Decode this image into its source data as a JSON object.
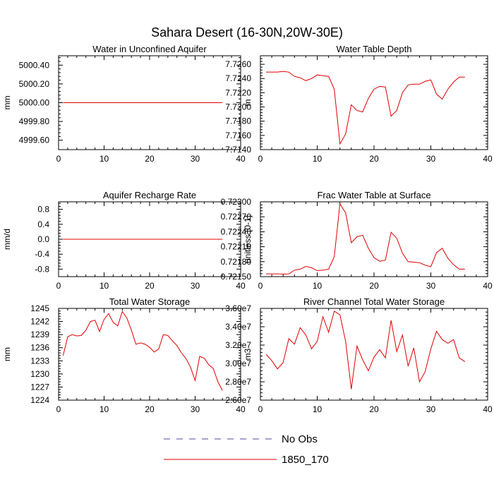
{
  "figure_title": "Sahara Desert (16-30N,20W-30E)",
  "legend": {
    "items": [
      {
        "label": "No Obs",
        "color": "#4a4aa0",
        "style": "dashed"
      },
      {
        "label": "1850_170",
        "color": "#e00000",
        "style": "solid"
      }
    ]
  },
  "chart_data": [
    {
      "type": "line",
      "title": "Water in Unconfined Aquifer",
      "ylabel": "mm",
      "xlim": [
        0,
        40
      ],
      "ylim": [
        4999.5,
        5000.5
      ],
      "xticks": [
        0,
        10,
        20,
        30,
        40
      ],
      "yticks": [
        4999.6,
        4999.8,
        5000.0,
        5000.2,
        5000.4
      ],
      "yticklabels": [
        "4999.60",
        "4999.80",
        "5000.00",
        "5000.20",
        "5000.40"
      ],
      "series": [
        {
          "color": "#e00000",
          "x": [
            1,
            2,
            3,
            4,
            5,
            6,
            7,
            8,
            9,
            10,
            11,
            12,
            13,
            14,
            15,
            16,
            17,
            18,
            19,
            20,
            21,
            22,
            23,
            24,
            25,
            26,
            27,
            28,
            29,
            30,
            31,
            32,
            33,
            34,
            35,
            36
          ],
          "y": [
            5000,
            5000,
            5000,
            5000,
            5000,
            5000,
            5000,
            5000,
            5000,
            5000,
            5000,
            5000,
            5000,
            5000,
            5000,
            5000,
            5000,
            5000,
            5000,
            5000,
            5000,
            5000,
            5000,
            5000,
            5000,
            5000,
            5000,
            5000,
            5000,
            5000,
            5000,
            5000,
            5000,
            5000,
            5000,
            5000
          ]
        }
      ]
    },
    {
      "type": "line",
      "title": "Water Table Depth",
      "ylabel": "m",
      "xlim": [
        0,
        40
      ],
      "ylim": [
        7.714,
        7.7272
      ],
      "xticks": [
        0,
        10,
        20,
        30,
        40
      ],
      "yticks": [
        7.714,
        7.716,
        7.718,
        7.72,
        7.722,
        7.724,
        7.726
      ],
      "yticklabels": [
        "7.7140",
        "7.7160",
        "7.7180",
        "7.7200",
        "7.7220",
        "7.7240",
        "7.7260"
      ],
      "series": [
        {
          "color": "#e00000",
          "x": [
            1,
            2,
            3,
            4,
            5,
            6,
            7,
            8,
            9,
            10,
            11,
            12,
            13,
            14,
            15,
            16,
            17,
            18,
            19,
            20,
            21,
            22,
            23,
            24,
            25,
            26,
            27,
            28,
            29,
            30,
            31,
            32,
            33,
            34,
            35,
            36
          ],
          "y": [
            7.7249,
            7.7249,
            7.7249,
            7.725,
            7.7249,
            7.7243,
            7.7241,
            7.7237,
            7.724,
            7.7245,
            7.7244,
            7.7243,
            7.7225,
            7.7148,
            7.7162,
            7.7203,
            7.7195,
            7.7193,
            7.7212,
            7.7225,
            7.7229,
            7.7228,
            7.7187,
            7.7195,
            7.722,
            7.7231,
            7.7232,
            7.7232,
            7.7236,
            7.7238,
            7.7218,
            7.7211,
            7.7225,
            7.7235,
            7.7242,
            7.7242
          ]
        }
      ]
    },
    {
      "type": "line",
      "title": "Aquifer Recharge Rate",
      "ylabel": "mm/d",
      "xlim": [
        0,
        40
      ],
      "ylim": [
        -1.0,
        1.0
      ],
      "xticks": [
        0,
        10,
        20,
        30,
        40
      ],
      "yticks": [
        -0.8,
        -0.4,
        0.0,
        0.4,
        0.8
      ],
      "yticklabels": [
        "-0.8",
        "-0.4",
        "0.0",
        "0.4",
        "0.8"
      ],
      "series": [
        {
          "color": "#e00000",
          "x": [
            1,
            2,
            3,
            4,
            5,
            6,
            7,
            8,
            9,
            10,
            11,
            12,
            13,
            14,
            15,
            16,
            17,
            18,
            19,
            20,
            21,
            22,
            23,
            24,
            25,
            26,
            27,
            28,
            29,
            30,
            31,
            32,
            33,
            34,
            35,
            36
          ],
          "y": [
            0,
            0,
            0,
            0,
            0,
            0,
            0,
            0,
            0,
            0,
            0,
            0,
            0,
            0,
            0,
            0,
            0,
            0,
            0,
            0,
            0,
            0,
            0,
            0,
            0,
            0,
            0,
            0,
            0,
            0,
            0,
            0,
            0,
            0,
            0,
            0
          ]
        }
      ]
    },
    {
      "type": "line",
      "title": "Frac Water Table at Surface",
      "ylabel": "unitless [0-1]",
      "xlim": [
        0,
        40
      ],
      "ylim": [
        0.7215,
        0.723
      ],
      "xticks": [
        0,
        10,
        20,
        30,
        40
      ],
      "yticks": [
        0.7215,
        0.7218,
        0.7221,
        0.7224,
        0.7227,
        0.723
      ],
      "yticklabels": [
        "0.72150",
        "0.72180",
        "0.72210",
        "0.72240",
        "0.72270",
        "0.72300"
      ],
      "series": [
        {
          "color": "#e00000",
          "x": [
            1,
            2,
            3,
            4,
            5,
            6,
            7,
            8,
            9,
            10,
            11,
            12,
            13,
            14,
            15,
            16,
            17,
            18,
            19,
            20,
            21,
            22,
            23,
            24,
            25,
            26,
            27,
            28,
            29,
            30,
            31,
            32,
            33,
            34,
            35,
            36
          ],
          "y": [
            0.721555,
            0.721555,
            0.721555,
            0.721552,
            0.721555,
            0.72163,
            0.72165,
            0.721705,
            0.72168,
            0.72162,
            0.72163,
            0.72165,
            0.7219,
            0.72296,
            0.72278,
            0.72218,
            0.7223,
            0.72233,
            0.72207,
            0.72188,
            0.72181,
            0.72183,
            0.72239,
            0.72227,
            0.72197,
            0.7218,
            0.72179,
            0.72178,
            0.72173,
            0.7217,
            0.72198,
            0.72207,
            0.72187,
            0.72174,
            0.72165,
            0.72165
          ]
        }
      ]
    },
    {
      "type": "line",
      "title": "Total Water Storage",
      "ylabel": "mm",
      "xlim": [
        0,
        40
      ],
      "ylim": [
        1224,
        1245
      ],
      "xticks": [
        0,
        10,
        20,
        30,
        40
      ],
      "yticks": [
        1224,
        1227,
        1230,
        1233,
        1236,
        1239,
        1242,
        1245
      ],
      "yticklabels": [
        "1224",
        "1227",
        "1230",
        "1233",
        "1236",
        "1239",
        "1242",
        "1245"
      ],
      "series": [
        {
          "color": "#e00000",
          "x": [
            1,
            2,
            3,
            4,
            5,
            6,
            7,
            8,
            9,
            10,
            11,
            12,
            13,
            14,
            15,
            16,
            17,
            18,
            19,
            20,
            21,
            22,
            23,
            24,
            25,
            26,
            27,
            28,
            29,
            30,
            31,
            32,
            33,
            34,
            35,
            36
          ],
          "y": [
            1234.2,
            1238.5,
            1239,
            1238.7,
            1238.8,
            1240,
            1242,
            1242.3,
            1239.7,
            1242.5,
            1243.8,
            1241.8,
            1241,
            1244.3,
            1242.8,
            1240,
            1236.8,
            1237.1,
            1236.8,
            1236.1,
            1235,
            1235.7,
            1239,
            1238.8,
            1237.6,
            1236.5,
            1234.8,
            1233.5,
            1231.5,
            1228.5,
            1234,
            1233.6,
            1232.1,
            1231.2,
            1228.2,
            1226.2
          ]
        }
      ]
    },
    {
      "type": "line",
      "title": "River Channel Total Water Storage",
      "ylabel": "m3",
      "xlim": [
        0,
        40
      ],
      "ylim": [
        26000000,
        36000000
      ],
      "xticks": [
        0,
        10,
        20,
        30,
        40
      ],
      "yticks": [
        26000000,
        28000000,
        30000000,
        32000000,
        34000000,
        36000000
      ],
      "yticklabels": [
        "2.60e7",
        "2.80e7",
        "3.00e7",
        "3.20e7",
        "3.40e7",
        "3.60e7"
      ],
      "series": [
        {
          "color": "#e00000",
          "x": [
            1,
            2,
            3,
            4,
            5,
            6,
            7,
            8,
            9,
            10,
            11,
            12,
            13,
            14,
            15,
            16,
            17,
            18,
            19,
            20,
            21,
            22,
            23,
            24,
            25,
            26,
            27,
            28,
            29,
            30,
            31,
            32,
            33,
            34,
            35,
            36
          ],
          "y": [
            31000000,
            30300000,
            29400000,
            30100000,
            32700000,
            32100000,
            33900000,
            33100000,
            31600000,
            32400000,
            35100000,
            33400000,
            35700000,
            35300000,
            32400000,
            27200000,
            31900000,
            30400000,
            29200000,
            30700000,
            31500000,
            30600000,
            34700000,
            31300000,
            33100000,
            29700000,
            31700000,
            28000000,
            29100000,
            31600000,
            33500000,
            32600000,
            32200000,
            32600000,
            30600000,
            30200000
          ]
        }
      ]
    }
  ]
}
